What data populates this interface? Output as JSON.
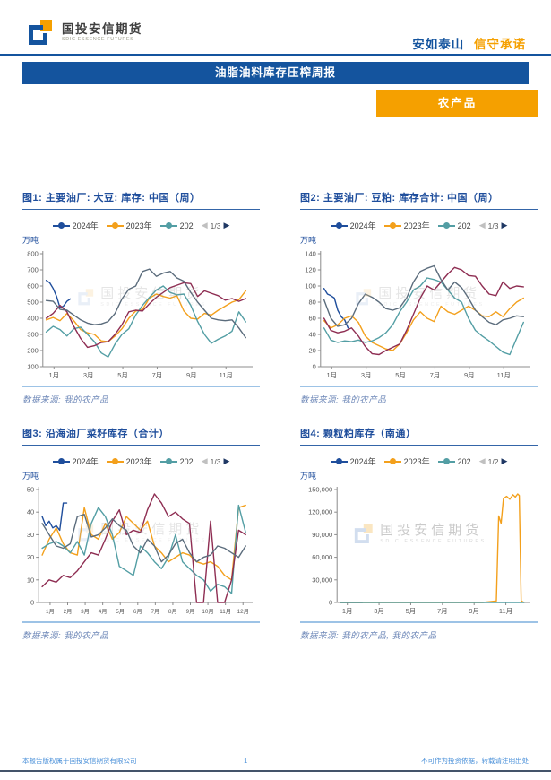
{
  "header": {
    "logo_cn": "国投安信期货",
    "logo_en": "SDIC ESSENCE FUTURES",
    "slogan_blue": "安如泰山",
    "slogan_orange": "信守承诺"
  },
  "banner": {
    "title": "油脂油料库存压榨周报"
  },
  "category_tag": {
    "label": "农产品"
  },
  "watermark": {
    "cn": "国投安信期货",
    "en": "SDIC ESSENCE FUTURES"
  },
  "chart_ui": {
    "prev_icon": "◀",
    "next_icon": "▶"
  },
  "colors": {
    "brand_blue": "#14549e",
    "brand_orange": "#f5a000",
    "series_2024": "#1f4e9c",
    "series_2023": "#f3a01c",
    "series_2022": "#539ea4",
    "series_2021": "#8e2d52",
    "series_2020": "#5b6c7c"
  },
  "chart_data": [
    {
      "type": "line",
      "title": "图1: 主要油厂: 大豆: 库存: 中国（周）",
      "unit": "万吨",
      "source": "数据来源: 我的农产品",
      "legend_visible": [
        "2024年",
        "2023年",
        "202"
      ],
      "legend_pager": "1/3",
      "xlim": [
        0.8,
        13.0
      ],
      "ylim": [
        100,
        800
      ],
      "yticks": [
        100,
        200,
        300,
        400,
        500,
        600,
        700,
        800
      ],
      "ytick_labels": [
        "100",
        "200",
        "300",
        "400",
        "500",
        "600",
        "700",
        "800"
      ],
      "xticks": [
        {
          "label": "1月",
          "pos": 1.45
        },
        {
          "label": "3月",
          "pos": 3.45
        },
        {
          "label": "5月",
          "pos": 5.45
        },
        {
          "label": "7月",
          "pos": 7.45
        },
        {
          "label": "9月",
          "pos": 9.45
        },
        {
          "label": "11月",
          "pos": 11.45
        }
      ],
      "x_default": [
        1,
        1.4,
        1.8,
        2.2,
        2.6,
        3,
        3.4,
        3.8,
        4.2,
        4.6,
        5,
        5.4,
        5.8,
        6.2,
        6.6,
        7,
        7.4,
        7.8,
        8.2,
        8.6,
        9,
        9.4,
        9.8,
        10.2,
        10.6,
        11,
        11.4,
        11.8,
        12.2,
        12.6
      ],
      "series": [
        {
          "name": "2024年",
          "color": "#1f4e9c",
          "x": [
            1,
            1.2,
            1.4,
            1.6,
            1.8,
            2,
            2.2,
            2.4
          ],
          "values": [
            635,
            620,
            585,
            535,
            465,
            475,
            505,
            520
          ]
        },
        {
          "name": "2023年",
          "color": "#f3a01c",
          "values": [
            390,
            405,
            385,
            430,
            385,
            330,
            310,
            300,
            260,
            255,
            290,
            335,
            400,
            445,
            455,
            525,
            550,
            535,
            525,
            540,
            445,
            400,
            395,
            430,
            420,
            450,
            475,
            500,
            515,
            570
          ]
        },
        {
          "name": "2022年",
          "color": "#539ea4",
          "values": [
            315,
            350,
            330,
            290,
            335,
            345,
            300,
            255,
            185,
            160,
            240,
            300,
            335,
            420,
            480,
            530,
            575,
            600,
            560,
            545,
            550,
            480,
            380,
            300,
            245,
            270,
            290,
            320,
            440,
            378
          ]
        },
        {
          "name": "2021年",
          "color": "#8e2d52",
          "values": [
            400,
            430,
            480,
            440,
            350,
            275,
            220,
            230,
            250,
            255,
            300,
            360,
            440,
            450,
            445,
            490,
            530,
            560,
            590,
            605,
            620,
            615,
            535,
            570,
            555,
            540,
            512,
            522,
            505,
            522
          ]
        },
        {
          "name": "2020年",
          "color": "#5b6c7c",
          "values": [
            510,
            505,
            455,
            450,
            420,
            390,
            370,
            360,
            365,
            380,
            430,
            520,
            580,
            600,
            690,
            705,
            660,
            680,
            690,
            650,
            630,
            560,
            500,
            450,
            400,
            390,
            385,
            390,
            340,
            280
          ]
        }
      ]
    },
    {
      "type": "line",
      "title": "图2: 主要油厂: 豆粕: 库存合计: 中国（周）",
      "unit": "万吨",
      "source": "数据来源: 我的农产品",
      "legend_visible": [
        "2024年",
        "2023年",
        "202"
      ],
      "legend_pager": "1/3",
      "xlim": [
        0.8,
        13.0
      ],
      "ylim": [
        0,
        140
      ],
      "yticks": [
        0,
        20,
        40,
        60,
        80,
        100,
        120,
        140
      ],
      "ytick_labels": [
        "0",
        "20",
        "40",
        "60",
        "80",
        "100",
        "120",
        "140"
      ],
      "xticks": [
        {
          "label": "1月",
          "pos": 1.45
        },
        {
          "label": "3月",
          "pos": 3.45
        },
        {
          "label": "5月",
          "pos": 5.45
        },
        {
          "label": "7月",
          "pos": 7.45
        },
        {
          "label": "9月",
          "pos": 9.45
        },
        {
          "label": "11月",
          "pos": 11.45
        }
      ],
      "x_default": [
        1,
        1.4,
        1.8,
        2.2,
        2.6,
        3,
        3.4,
        3.8,
        4.2,
        4.6,
        5,
        5.4,
        5.8,
        6.2,
        6.6,
        7,
        7.4,
        7.8,
        8.2,
        8.6,
        9,
        9.4,
        9.8,
        10.2,
        10.6,
        11,
        11.4,
        11.8,
        12.2,
        12.6
      ],
      "series": [
        {
          "name": "2024年",
          "color": "#1f4e9c",
          "x": [
            1,
            1.2,
            1.4,
            1.6,
            1.8,
            2,
            2.2,
            2.4
          ],
          "values": [
            97,
            90,
            88,
            85,
            70,
            62,
            58,
            48
          ]
        },
        {
          "name": "2023年",
          "color": "#f3a01c",
          "values": [
            57,
            48,
            52,
            60,
            63,
            55,
            38,
            30,
            26,
            22,
            20,
            28,
            42,
            58,
            68,
            60,
            56,
            75,
            68,
            65,
            70,
            75,
            70,
            63,
            62,
            68,
            62,
            72,
            80,
            85
          ]
        },
        {
          "name": "2022年",
          "color": "#539ea4",
          "values": [
            48,
            33,
            30,
            32,
            31,
            33,
            30,
            32,
            36,
            42,
            52,
            68,
            80,
            95,
            100,
            110,
            108,
            105,
            95,
            85,
            80,
            60,
            45,
            38,
            32,
            25,
            18,
            15,
            35,
            55
          ]
        },
        {
          "name": "2021年",
          "color": "#8e2d52",
          "values": [
            60,
            45,
            42,
            44,
            48,
            38,
            25,
            16,
            15,
            20,
            24,
            28,
            45,
            65,
            85,
            100,
            95,
            105,
            115,
            123,
            120,
            113,
            112,
            100,
            90,
            88,
            105,
            97,
            100,
            99
          ]
        },
        {
          "name": "2020年",
          "color": "#5b6c7c",
          "values": [
            83,
            60,
            50,
            52,
            60,
            78,
            90,
            86,
            80,
            72,
            70,
            73,
            85,
            105,
            118,
            122,
            125,
            108,
            95,
            105,
            98,
            85,
            70,
            62,
            55,
            52,
            58,
            60,
            63,
            62
          ]
        }
      ]
    },
    {
      "type": "line",
      "title": "图3: 沿海油厂菜籽库存（合计）",
      "unit": "万吨",
      "source": "数据来源: 我的农产品",
      "legend_visible": [
        "2024年",
        "2023年",
        "202"
      ],
      "legend_pager": "1/3",
      "xlim": [
        0.8,
        13.0
      ],
      "ylim": [
        0,
        50
      ],
      "yticks": [
        0,
        10,
        20,
        30,
        40,
        50
      ],
      "ytick_labels": [
        "0",
        "10",
        "20",
        "30",
        "40",
        "50"
      ],
      "xtick_font": 6.3,
      "xticks": [
        {
          "label": "1月",
          "pos": 1.45
        },
        {
          "label": "2月",
          "pos": 2.45
        },
        {
          "label": "3月",
          "pos": 3.45
        },
        {
          "label": "4月",
          "pos": 4.45
        },
        {
          "label": "5月",
          "pos": 5.45
        },
        {
          "label": "6月",
          "pos": 6.45
        },
        {
          "label": "7月",
          "pos": 7.45
        },
        {
          "label": "8月",
          "pos": 8.45
        },
        {
          "label": "9月",
          "pos": 9.45
        },
        {
          "label": "10月",
          "pos": 10.45
        },
        {
          "label": "11月",
          "pos": 11.45
        },
        {
          "label": "12月",
          "pos": 12.45
        }
      ],
      "x_default": [
        1,
        1.4,
        1.8,
        2.2,
        2.6,
        3,
        3.4,
        3.8,
        4.2,
        4.6,
        5,
        5.4,
        5.8,
        6.2,
        6.6,
        7,
        7.4,
        7.8,
        8.2,
        8.6,
        9,
        9.4,
        9.8,
        10.2,
        10.6,
        11,
        11.4,
        11.8,
        12.2,
        12.6
      ],
      "series": [
        {
          "name": "2024年",
          "color": "#1f4e9c",
          "x": [
            1,
            1.2,
            1.4,
            1.6,
            1.8,
            2,
            2.2,
            2.4
          ],
          "values": [
            38,
            34,
            36,
            33,
            34,
            32,
            44,
            44
          ]
        },
        {
          "name": "2023年",
          "color": "#f3a01c",
          "values": [
            21,
            28,
            33,
            26,
            22,
            21,
            42,
            30,
            28,
            35,
            28,
            31,
            38,
            35,
            32,
            36,
            25,
            22,
            18,
            20,
            22,
            21,
            18,
            17,
            18,
            16,
            12,
            10,
            42,
            43
          ]
        },
        {
          "name": "2022年",
          "color": "#539ea4",
          "values": [
            24,
            26,
            27,
            25,
            22,
            27,
            21,
            35,
            42,
            38,
            30,
            16,
            14,
            12,
            25,
            22,
            18,
            15,
            20,
            30,
            18,
            15,
            12,
            10,
            5,
            8,
            7,
            4,
            43,
            31
          ]
        },
        {
          "name": "2021年",
          "color": "#8e2d52",
          "values": [
            7,
            10,
            9,
            12,
            11,
            14,
            18,
            22,
            21,
            28,
            36,
            41,
            30,
            32,
            31,
            41,
            48,
            44,
            38,
            40,
            37,
            35,
            0,
            0,
            36,
            0,
            0,
            10,
            32,
            30
          ]
        },
        {
          "name": "2020年",
          "color": "#5b6c7c",
          "values": [
            35,
            30,
            25,
            24,
            26,
            38,
            39,
            29,
            30,
            33,
            37,
            34,
            32,
            25,
            22,
            28,
            25,
            18,
            21,
            26,
            28,
            22,
            18,
            20,
            21,
            25,
            24,
            22,
            20,
            25
          ]
        }
      ]
    },
    {
      "type": "line",
      "title": "图4: 颗粒粕库存（南通）",
      "unit": "万吨",
      "source": "数据来源: 我的农产品, 我的农产品",
      "legend_visible": [
        "2024年",
        "2023年",
        "202"
      ],
      "legend_pager": "1/2",
      "xlim": [
        0.8,
        13.0
      ],
      "ylim": [
        0,
        150000
      ],
      "yticks": [
        0,
        30000,
        60000,
        90000,
        120000,
        150000
      ],
      "ytick_labels": [
        "0",
        "30,000",
        "60,000",
        "90,000",
        "120,000",
        "150,000"
      ],
      "xticks": [
        {
          "label": "1月",
          "pos": 1.45
        },
        {
          "label": "3月",
          "pos": 3.45
        },
        {
          "label": "5月",
          "pos": 5.45
        },
        {
          "label": "7月",
          "pos": 7.45
        },
        {
          "label": "9月",
          "pos": 9.45
        },
        {
          "label": "11月",
          "pos": 11.45
        }
      ],
      "x_default": [
        1,
        1.4,
        1.8,
        2.2,
        2.6,
        3,
        3.4,
        3.8,
        4.2,
        4.6,
        5,
        5.4,
        5.8,
        6.2,
        6.6,
        7,
        7.4,
        7.8,
        8.2,
        8.6,
        9,
        9.4,
        9.8,
        10.2,
        10.6,
        11,
        11.4,
        11.8,
        12.2,
        12.6
      ],
      "series": [
        {
          "name": "2024年",
          "color": "#1f4e9c",
          "x": [
            1,
            1.5,
            2,
            2.4
          ],
          "values": [
            0,
            0,
            0,
            0
          ]
        },
        {
          "name": "2023年",
          "color": "#f3a01c",
          "x": [
            1,
            2,
            3,
            4,
            5,
            6,
            7,
            8,
            9,
            10,
            10.85,
            11,
            11.15,
            11.3,
            11.5,
            11.7,
            11.9,
            12.05,
            12.2,
            12.3,
            12.42,
            12.6
          ],
          "values": [
            0,
            0,
            0,
            0,
            0,
            0,
            0,
            0,
            0,
            0,
            2000,
            115000,
            105000,
            138000,
            141000,
            137000,
            143000,
            140000,
            144000,
            142000,
            2000,
            0
          ]
        },
        {
          "name": "2022年",
          "color": "#539ea4",
          "x": [
            1,
            3,
            5,
            7,
            9,
            11,
            12.6
          ],
          "values": [
            0,
            0,
            0,
            0,
            0,
            0,
            0
          ]
        }
      ]
    }
  ],
  "footer": {
    "left": "本报告版权属于国投安信期货有限公司",
    "page": "1",
    "right": "不可作为投资依据，转载请注明出处"
  }
}
